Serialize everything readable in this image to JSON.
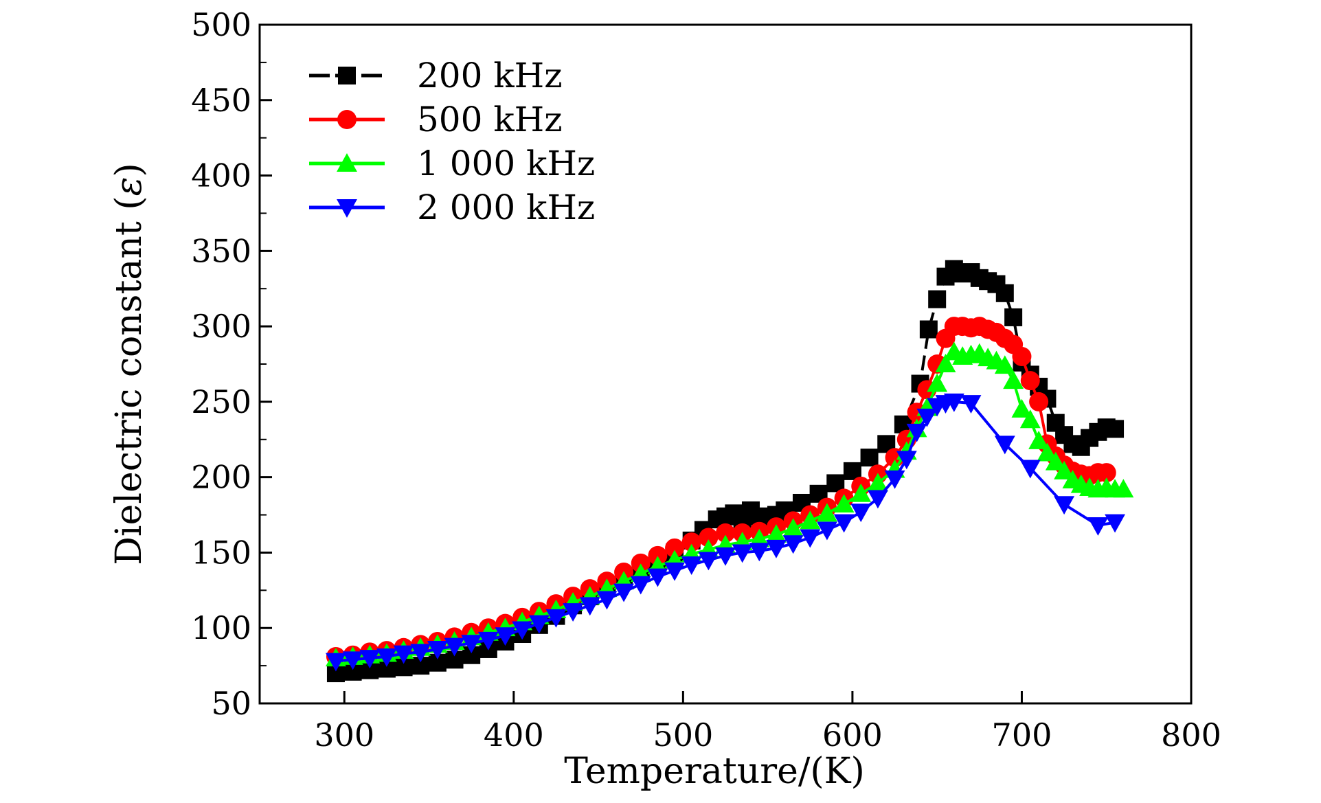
{
  "chart_data": {
    "type": "line",
    "title": "",
    "xlabel": "Temperature/(K)",
    "ylabel": "Dielectric constant (ε)",
    "ylabel_main": "Dielectric constant (",
    "ylabel_symbol": "ε",
    "ylabel_close": ")",
    "xlim": [
      250,
      800
    ],
    "ylim": [
      50,
      500
    ],
    "xticks": [
      300,
      400,
      500,
      600,
      700,
      800
    ],
    "yticks": [
      50,
      100,
      150,
      200,
      250,
      300,
      350,
      400,
      450,
      500
    ],
    "legend_position": "top-left",
    "series": [
      {
        "name": "200 kHz",
        "color": "#000000",
        "marker": "square",
        "x": [
          295,
          305,
          315,
          325,
          335,
          345,
          355,
          365,
          375,
          385,
          395,
          405,
          415,
          425,
          435,
          445,
          455,
          465,
          475,
          485,
          495,
          505,
          512,
          520,
          525,
          530,
          535,
          540,
          545,
          550,
          555,
          560,
          570,
          580,
          590,
          600,
          610,
          620,
          630,
          640,
          645,
          650,
          655,
          660,
          665,
          670,
          675,
          680,
          685,
          690,
          695,
          700,
          705,
          710,
          715,
          720,
          725,
          730,
          735,
          740,
          745,
          750,
          755
        ],
        "y": [
          70,
          71,
          72,
          73,
          74,
          75,
          77,
          79,
          82,
          86,
          91,
          96,
          102,
          108,
          115,
          121,
          127,
          132,
          138,
          143,
          150,
          158,
          165,
          172,
          174,
          176,
          172,
          178,
          174,
          172,
          175,
          178,
          183,
          189,
          196,
          204,
          213,
          222,
          235,
          262,
          298,
          318,
          333,
          338,
          335,
          336,
          332,
          330,
          328,
          322,
          306,
          276,
          268,
          260,
          252,
          236,
          228,
          222,
          220,
          226,
          230,
          233,
          232
        ]
      },
      {
        "name": "500 kHz",
        "color": "#ff0000",
        "marker": "circle",
        "x": [
          295,
          305,
          315,
          325,
          335,
          345,
          355,
          365,
          375,
          385,
          395,
          405,
          415,
          425,
          435,
          445,
          455,
          465,
          475,
          485,
          495,
          505,
          515,
          525,
          535,
          545,
          555,
          565,
          575,
          585,
          595,
          605,
          615,
          625,
          632,
          638,
          644,
          650,
          655,
          660,
          665,
          670,
          675,
          680,
          685,
          690,
          695,
          700,
          705,
          710,
          715,
          720,
          725,
          730,
          735,
          740,
          745,
          750
        ],
        "y": [
          81,
          82,
          84,
          85,
          87,
          89,
          91,
          94,
          97,
          100,
          103,
          107,
          111,
          116,
          121,
          126,
          131,
          137,
          143,
          148,
          153,
          157,
          160,
          163,
          163,
          164,
          167,
          171,
          175,
          180,
          186,
          194,
          202,
          213,
          225,
          243,
          258,
          275,
          292,
          300,
          300,
          299,
          300,
          298,
          296,
          292,
          288,
          280,
          264,
          250,
          222,
          214,
          208,
          204,
          202,
          201,
          203,
          203
        ]
      },
      {
        "name": "1 000 kHz",
        "color": "#00ff00",
        "marker": "triangle-up",
        "x": [
          295,
          305,
          315,
          325,
          335,
          345,
          355,
          365,
          375,
          385,
          395,
          405,
          415,
          425,
          435,
          445,
          455,
          465,
          475,
          485,
          495,
          505,
          515,
          525,
          535,
          545,
          555,
          565,
          575,
          585,
          595,
          605,
          615,
          625,
          632,
          638,
          644,
          650,
          655,
          660,
          665,
          670,
          675,
          680,
          685,
          690,
          695,
          700,
          705,
          710,
          715,
          720,
          725,
          730,
          735,
          740,
          745,
          750,
          755,
          760
        ],
        "y": [
          80,
          81,
          82,
          83,
          85,
          87,
          89,
          91,
          94,
          97,
          100,
          104,
          108,
          112,
          117,
          121,
          126,
          131,
          136,
          141,
          145,
          149,
          152,
          155,
          157,
          159,
          162,
          166,
          171,
          176,
          182,
          189,
          196,
          205,
          217,
          232,
          246,
          262,
          275,
          283,
          280,
          281,
          282,
          279,
          277,
          274,
          264,
          245,
          238,
          224,
          216,
          210,
          204,
          198,
          195,
          193,
          192,
          193,
          192,
          192
        ]
      },
      {
        "name": "2 000 kHz",
        "color": "#0000ff",
        "marker": "triangle-down",
        "x": [
          295,
          305,
          315,
          325,
          335,
          345,
          355,
          365,
          375,
          385,
          395,
          405,
          415,
          425,
          435,
          445,
          455,
          465,
          475,
          485,
          495,
          505,
          515,
          525,
          535,
          545,
          555,
          565,
          575,
          585,
          595,
          605,
          615,
          625,
          632,
          638,
          644,
          650,
          655,
          660,
          670,
          690,
          705,
          725,
          745,
          755
        ],
        "y": [
          78,
          79,
          80,
          81,
          83,
          84,
          86,
          88,
          90,
          92,
          95,
          99,
          103,
          107,
          111,
          115,
          119,
          124,
          129,
          134,
          138,
          142,
          145,
          148,
          150,
          151,
          153,
          156,
          160,
          165,
          170,
          177,
          186,
          199,
          212,
          230,
          240,
          247,
          249,
          250,
          249,
          222,
          206,
          182,
          168,
          170
        ]
      }
    ]
  }
}
